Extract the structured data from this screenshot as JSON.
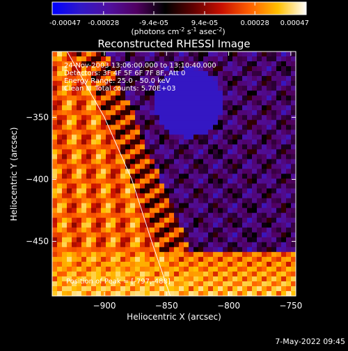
{
  "colorbar": {
    "tick_labels": [
      "-0.00047",
      "-0.00028",
      "-9.4e-05",
      "9.4e-05",
      "0.00028",
      "0.00047"
    ],
    "tick_values": [
      -0.00047,
      -0.00028,
      -9.4e-05,
      9.4e-05,
      0.00028,
      0.00047
    ],
    "range": [
      -0.00047,
      0.00047
    ],
    "unit_main": "(photons cm",
    "unit_sup1": "-2",
    "unit_s": " s",
    "unit_sup2": "-1",
    "unit_asec": " asec",
    "unit_sup3": "-2",
    "unit_close": ")",
    "colors": [
      "#0000ff",
      "#3018c8",
      "#5010a0",
      "#500060",
      "#000000",
      "#600000",
      "#c81000",
      "#ff6000",
      "#ffc000",
      "#ffffff"
    ]
  },
  "chart_data": {
    "type": "heatmap",
    "title": "Reconstructed RHESSI Image",
    "xlabel": "Heliocentric X (arcsec)",
    "ylabel": "Heliocentric Y (arcsec)",
    "xlim": [
      -942,
      -746
    ],
    "ylim": [
      -494,
      -297
    ],
    "xticks": [
      -900,
      -850,
      -800,
      -750
    ],
    "xtick_labels": [
      "−900",
      "−850",
      "−800",
      "−750"
    ],
    "yticks": [
      -350,
      -400,
      -450
    ],
    "ytick_labels": [
      "−350",
      "−400",
      "−450"
    ],
    "limb_curve": [
      [
        -930,
        -297
      ],
      [
        -900,
        -350
      ],
      [
        -878,
        -400
      ],
      [
        -862,
        -450
      ],
      [
        -847,
        -494
      ]
    ],
    "annotations": [
      "24-Nov-2003 13:06:00.000 to 13:10:40.000",
      "Detectors: 3F 4F 5F 6F 7F 8F, Att 0",
      "Energy Range: 25.0 - 50.0 keV",
      "Clean     Total counts: 5.70E+03"
    ],
    "peak_label": "Position of Peak = [-797,-488]",
    "peak": [
      -797,
      -488
    ],
    "grid": false
  },
  "footer": {
    "timestamp": "7-May-2022 09:45"
  }
}
